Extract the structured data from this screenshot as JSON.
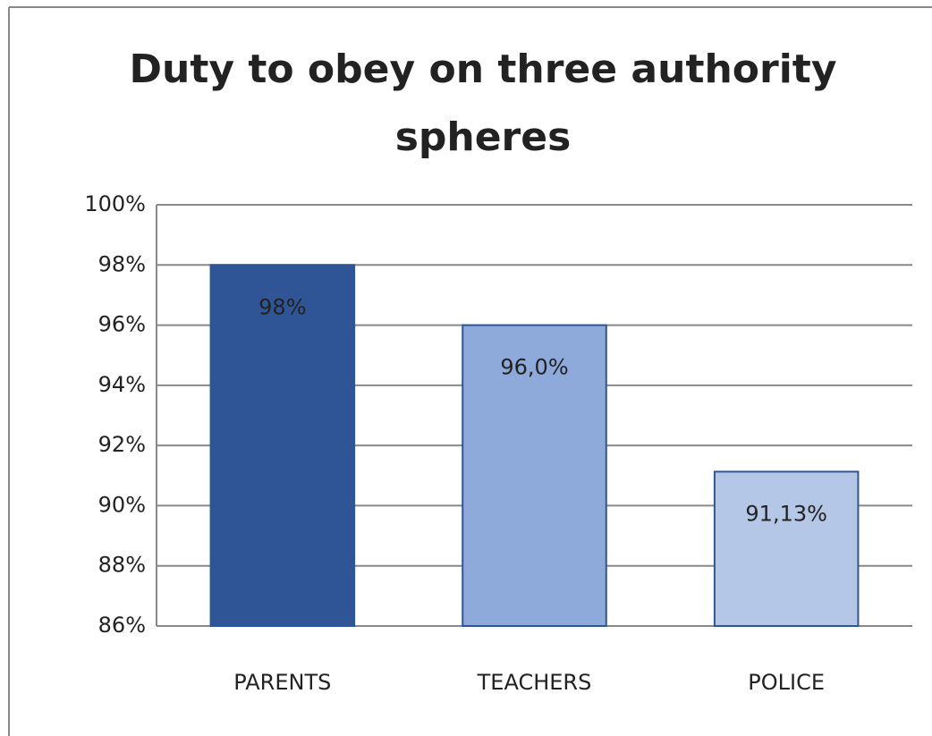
{
  "chart_data": {
    "type": "bar",
    "title": "Duty to obey on three authority spheres",
    "categories": [
      "PARENTS",
      "TEACHERS",
      "POLICE"
    ],
    "values": [
      98,
      96,
      91.13
    ],
    "value_labels": [
      "98%",
      "96,0%",
      "91,13%"
    ],
    "colors": [
      "#2f5597",
      "#8eaadb",
      "#b4c7e7"
    ],
    "ylim": [
      86,
      100
    ],
    "yticks": [
      {
        "value": 86,
        "label": "86%"
      },
      {
        "value": 88,
        "label": "88%"
      },
      {
        "value": 90,
        "label": "90%"
      },
      {
        "value": 92,
        "label": "92%"
      },
      {
        "value": 94,
        "label": "94%"
      },
      {
        "value": 96,
        "label": "96%"
      },
      {
        "value": 98,
        "label": "98%"
      },
      {
        "value": 100,
        "label": "100%"
      }
    ],
    "grid": true
  }
}
